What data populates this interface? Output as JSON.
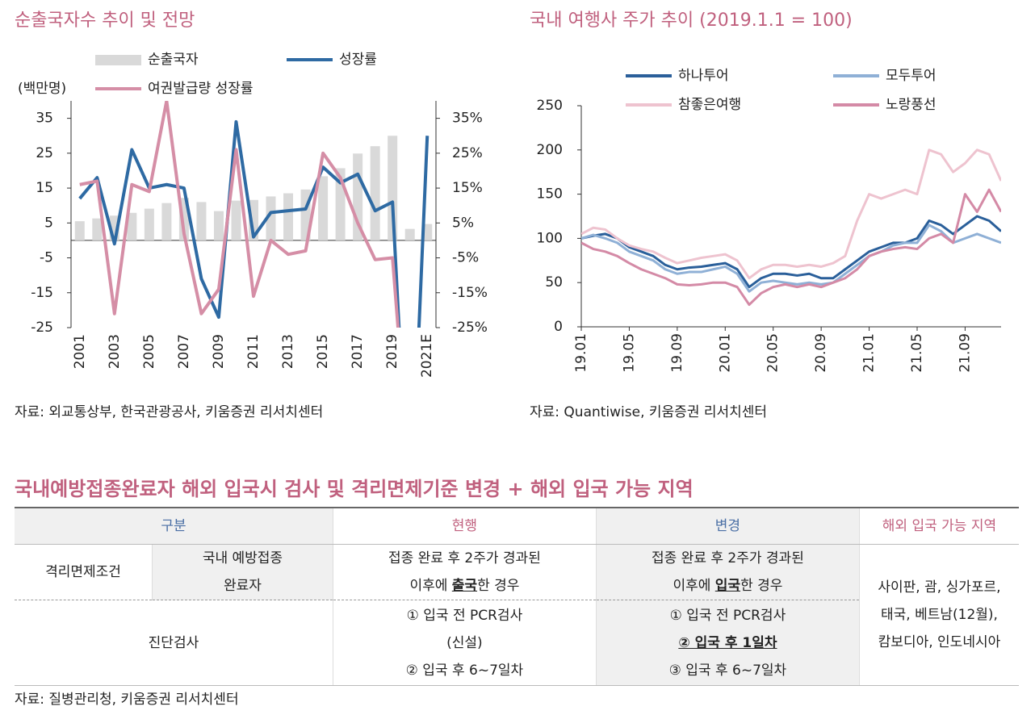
{
  "chart_data": [
    {
      "type": "bar",
      "title": "순출국자수 추이 및 전망",
      "unit_label": "(백만명)",
      "categories": [
        "2001",
        null,
        "2003",
        null,
        "2005",
        null,
        "2007",
        null,
        "2009",
        null,
        "2011",
        null,
        "2013",
        null,
        "2015",
        null,
        "2017",
        null,
        "2019",
        null,
        "2021E"
      ],
      "series": [
        {
          "name": "순출국자",
          "type": "bar",
          "color": "#d9d9d9",
          "values": [
            5.5,
            6.3,
            7.1,
            7.9,
            9.1,
            10.7,
            12.2,
            11.0,
            8.4,
            11.4,
            11.6,
            12.6,
            13.5,
            14.6,
            18.4,
            20.7,
            24.9,
            27.0,
            30.0,
            3.3,
            4.7
          ]
        },
        {
          "name": "성장률",
          "type": "line",
          "color": "#2e6aa3",
          "axis": "y2",
          "values": [
            12,
            18,
            -1,
            26,
            15,
            16,
            15,
            -11,
            -22,
            34,
            1,
            8,
            8.5,
            9,
            21,
            16.5,
            19,
            8.5,
            11,
            -85,
            30
          ]
        },
        {
          "name": "여권발급량 성장률",
          "type": "line",
          "color": "#d58ea6",
          "axis": "y2",
          "values": [
            16,
            17,
            -21,
            16,
            14,
            40,
            2,
            -21,
            -14,
            26,
            -16,
            0,
            -4,
            -3,
            25,
            18,
            5,
            -5.5,
            -5,
            -68,
            null
          ]
        }
      ],
      "ylim": [
        -25,
        40
      ],
      "yticks": [
        35,
        25,
        15,
        5,
        -5,
        -15,
        -25
      ],
      "y2lim": [
        -25,
        40
      ],
      "y2ticks": [
        {
          "value": 35,
          "label": "35%"
        },
        {
          "value": 25,
          "label": "25%"
        },
        {
          "value": 15,
          "label": "15%"
        },
        {
          "value": 5,
          "label": "5%"
        },
        {
          "value": -5,
          "label": "-5%"
        },
        {
          "value": -15,
          "label": "-15%"
        },
        {
          "value": -25,
          "label": "-25%"
        }
      ],
      "source": "자료: 외교통상부, 한국관광공사, 키움증권 리서치센터"
    },
    {
      "type": "line",
      "title": "국내 여행사 주가 추이 (2019.1.1 = 100)",
      "x": [
        "19.01",
        "19.02",
        "19.03",
        "19.04",
        "19.05",
        "19.06",
        "19.07",
        "19.08",
        "19.09",
        "19.10",
        "19.11",
        "19.12",
        "20.01",
        "20.02",
        "20.03",
        "20.04",
        "20.05",
        "20.06",
        "20.07",
        "20.08",
        "20.09",
        "20.10",
        "20.11",
        "20.12",
        "21.01",
        "21.02",
        "21.03",
        "21.04",
        "21.05",
        "21.06",
        "21.07",
        "21.08",
        "21.09",
        "21.10",
        "21.11",
        "21.12"
      ],
      "xticks": [
        "19.01",
        "19.05",
        "19.09",
        "20.01",
        "20.05",
        "20.09",
        "21.01",
        "21.05",
        "21.09"
      ],
      "series": [
        {
          "name": "하나투어",
          "color": "#2a5f9a",
          "values": [
            100,
            103,
            105,
            100,
            90,
            85,
            80,
            70,
            65,
            67,
            68,
            70,
            72,
            65,
            45,
            55,
            60,
            60,
            58,
            60,
            55,
            55,
            65,
            75,
            85,
            90,
            95,
            95,
            100,
            120,
            115,
            105,
            115,
            125,
            120,
            108
          ]
        },
        {
          "name": "모두투어",
          "color": "#8fb0d6",
          "values": [
            100,
            104,
            100,
            95,
            85,
            80,
            75,
            65,
            60,
            62,
            62,
            65,
            68,
            60,
            40,
            50,
            52,
            50,
            48,
            50,
            48,
            50,
            60,
            70,
            80,
            85,
            92,
            95,
            95,
            115,
            108,
            95,
            100,
            105,
            100,
            95
          ]
        },
        {
          "name": "참좋은여행",
          "color": "#eec3cf",
          "values": [
            105,
            112,
            110,
            100,
            92,
            88,
            85,
            78,
            72,
            75,
            78,
            80,
            82,
            75,
            55,
            65,
            70,
            70,
            68,
            70,
            68,
            72,
            80,
            120,
            150,
            145,
            150,
            155,
            150,
            200,
            195,
            175,
            185,
            200,
            195,
            165
          ]
        },
        {
          "name": "노랑풍선",
          "color": "#d48aa6",
          "values": [
            95,
            88,
            85,
            80,
            72,
            65,
            60,
            55,
            48,
            47,
            48,
            50,
            50,
            45,
            25,
            38,
            45,
            48,
            45,
            48,
            45,
            50,
            55,
            65,
            80,
            85,
            88,
            90,
            88,
            100,
            105,
            95,
            150,
            130,
            155,
            130
          ]
        }
      ],
      "ylim": [
        0,
        250
      ],
      "yticks": [
        0,
        50,
        100,
        150,
        200,
        250
      ],
      "source": "자료: Quantiwise, 키움증권 리서치센터"
    }
  ],
  "table": {
    "title": "국내예방접종완료자 해외 입국시 검사 및 격리면제기준 변경 + 해외 입국 가능 지역",
    "header": [
      "구분",
      "현행",
      "변경",
      "해외 입국 가능 지역"
    ],
    "rows": [
      {
        "label": "격리면제조건",
        "sublabel": [
          "국내 예방접종",
          "완료자"
        ],
        "current": [
          "접종 완료 후 2주가 경과된",
          "이후에 ",
          "출국",
          "한 경우"
        ],
        "changed": [
          "접종 완료 후 2주가 경과된",
          "이후에 ",
          "입국",
          "한 경우"
        ],
        "regions": [
          "사이판, 괌, 싱가포르,",
          "태국, 베트남(12월),",
          "캄보디아, 인도네시아"
        ]
      },
      {
        "label": "진단검사",
        "current": [
          "① 입국 전 PCR검사",
          "(신설)",
          "② 입국 후 6~7일차"
        ],
        "changed": [
          "① 입국 전 PCR검사",
          "② 입국 후 1일차",
          "③ 입국 후 6~7일차"
        ]
      }
    ],
    "source": "자료: 질병관리청, 키움증권 리서치센터"
  }
}
